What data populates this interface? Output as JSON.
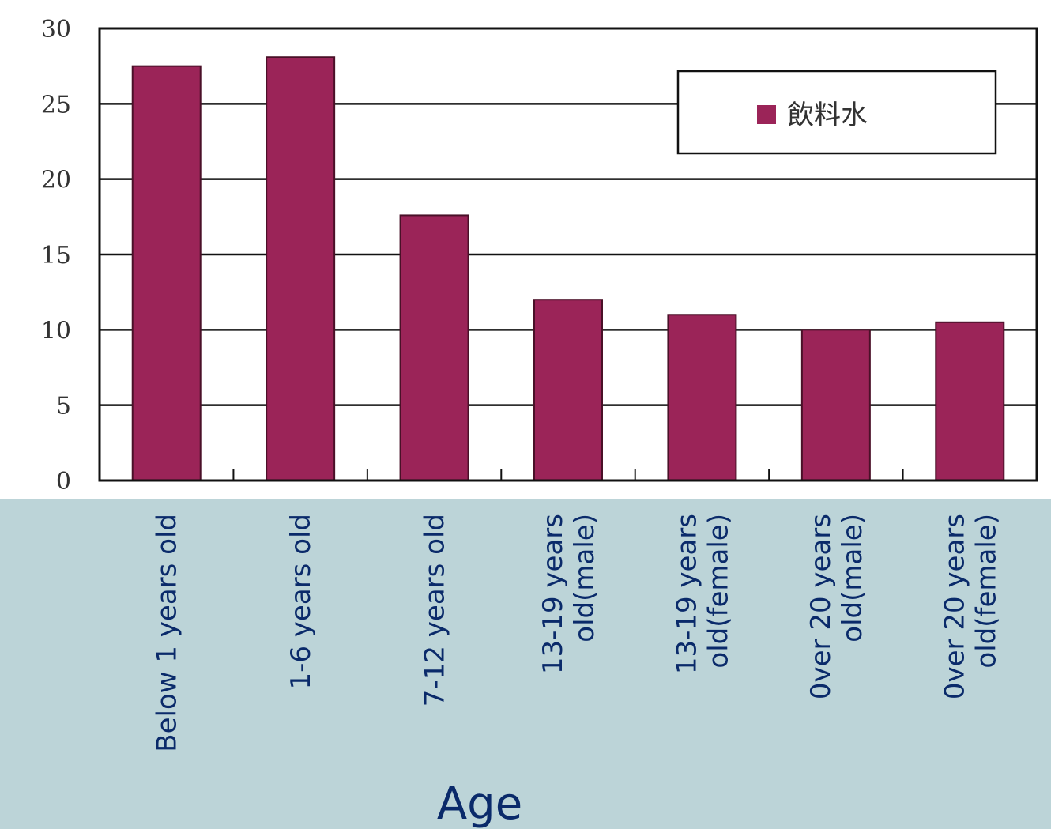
{
  "chart_data": {
    "type": "bar",
    "categories": [
      [
        "Below 1 years old"
      ],
      [
        "1-6 years old"
      ],
      [
        "7-12 years old"
      ],
      [
        "13-19 years",
        "old(male)"
      ],
      [
        "13-19 years",
        "old(female)"
      ],
      [
        "0ver 20 years",
        "old(male)"
      ],
      [
        "0ver 20 years",
        "old(female)"
      ]
    ],
    "series": [
      {
        "name": "飲料水",
        "values": [
          27.5,
          28.1,
          17.6,
          12.0,
          11.0,
          10.0,
          10.5
        ],
        "color": "#9b2458"
      }
    ],
    "ylim": [
      0,
      30
    ],
    "yticks": [
      "0",
      "5",
      "10",
      "15",
      "20",
      "25",
      "30"
    ],
    "xlabel": "Age",
    "ylabel": "",
    "grid": true,
    "legend_position": "top-right"
  }
}
